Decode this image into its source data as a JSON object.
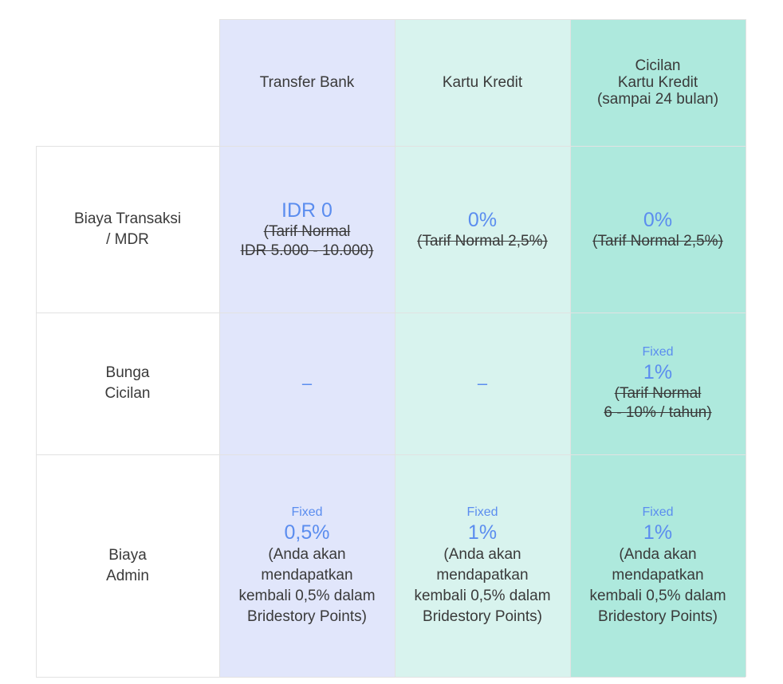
{
  "header": {
    "bank": "Transfer Bank",
    "kk": "Kartu Kredit",
    "cicilan": [
      "Cicilan",
      "Kartu Kredit",
      "(sampai 24 bulan)"
    ]
  },
  "rows": {
    "mdr": {
      "label": [
        "Biaya Transaksi",
        "/ MDR"
      ],
      "bank": {
        "value": "IDR 0",
        "strike": [
          "(Tarif Normal",
          "IDR 5.000 - 10.000)"
        ]
      },
      "kk": {
        "value": "0%",
        "strike": "(Tarif Normal 2,5%)"
      },
      "cicilan": {
        "value": "0%",
        "strike": "(Tarif Normal 2,5%)"
      }
    },
    "bunga": {
      "label": [
        "Bunga",
        "Cicilan"
      ],
      "bank": "–",
      "kk": "–",
      "cicilan": {
        "fixed": "Fixed",
        "value": "1%",
        "strike": [
          "(Tarif Normal",
          "6 - 10% / tahun)"
        ]
      }
    },
    "admin": {
      "label": [
        "Biaya",
        "Admin"
      ],
      "bank": {
        "fixed": "Fixed",
        "value": "0,5%",
        "note": [
          "(Anda akan",
          "mendapatkan",
          "kembali 0,5% dalam",
          "Bridestory Points)"
        ]
      },
      "kk": {
        "fixed": "Fixed",
        "value": "1%",
        "note": [
          "(Anda akan",
          "mendapatkan",
          "kembali 0,5% dalam",
          "Bridestory Points)"
        ]
      },
      "cicilan": {
        "fixed": "Fixed",
        "value": "1%",
        "note": [
          "(Anda akan",
          "mendapatkan",
          "kembali 0,5% dalam",
          "Bridestory Points)"
        ]
      }
    }
  },
  "colors": {
    "bank_bg": "#e1e6fb",
    "kk_bg": "#d8f3ee",
    "cicilan_bg": "#aee9dd",
    "accent": "#5b8def"
  }
}
